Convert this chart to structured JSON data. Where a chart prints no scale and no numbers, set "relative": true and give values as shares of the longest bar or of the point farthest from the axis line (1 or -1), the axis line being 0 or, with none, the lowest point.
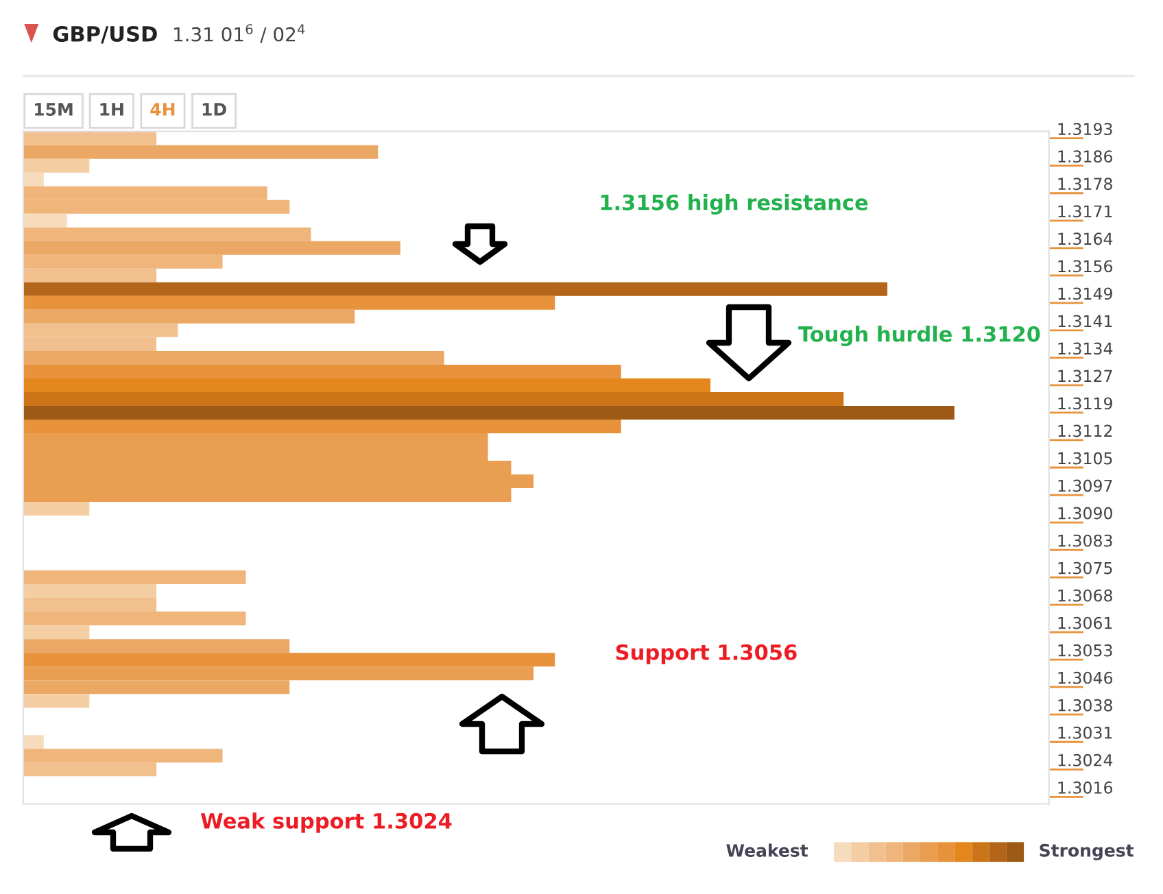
{
  "chart_data": {
    "type": "bar",
    "orientation": "horizontal",
    "relative": true,
    "title": "GBP/USD",
    "subtitle": "1.31 01$^{6}$ / 02$^{4}$",
    "categories": [
      "1.3193",
      null,
      "1.3186",
      null,
      "1.3178",
      null,
      "1.3171",
      null,
      "1.3164",
      null,
      "1.3156",
      null,
      "1.3149",
      null,
      "1.3141",
      null,
      "1.3134",
      null,
      "1.3127",
      null,
      "1.3119",
      null,
      "1.3112",
      null,
      "1.3105",
      null,
      "1.3097",
      null,
      "1.3090",
      null,
      "1.3083",
      null,
      "1.3075",
      null,
      "1.3068",
      null,
      "1.3061",
      null,
      "1.3053",
      null,
      "1.3046",
      null,
      "1.3038",
      null,
      "1.3031",
      null,
      "1.3024",
      null,
      "1.3016"
    ],
    "values": [
      0.143,
      0.381,
      0.071,
      0.022,
      0.262,
      0.286,
      0.047,
      0.309,
      0.405,
      0.214,
      0.143,
      0.928,
      0.571,
      0.356,
      0.166,
      0.143,
      0.452,
      0.642,
      0.738,
      0.881,
      1,
      0.642,
      0.499,
      0.499,
      0.524,
      0.548,
      0.524,
      0.071,
      0,
      0,
      0,
      0,
      0.239,
      0.143,
      0.143,
      0.239,
      0.071,
      0.286,
      0.571,
      0.548,
      0.286,
      0.071,
      0,
      0,
      0.022,
      0.214,
      0.143,
      0,
      0
    ],
    "colors": [
      "#f2c08f",
      "#eba865",
      "#f4cda3",
      "#f7dbbd",
      "#efb57a",
      "#efb57a",
      "#f7dbbd",
      "#efb57a",
      "#eba865",
      "#efb57a",
      "#f2c08f",
      "#b3661a",
      "#e8923c",
      "#eba865",
      "#f2c08f",
      "#f2c08f",
      "#eba865",
      "#e8923c",
      "#e3861c",
      "#cc7418",
      "#9c5a16",
      "#e8923c",
      "#e99e51",
      "#e99e51",
      "#e99e51",
      "#e99e51",
      "#e99e51",
      "#f4cda3",
      "#f7dbbd",
      "#f7dbbd",
      "#f7dbbd",
      "#f7dbbd",
      "#efb57a",
      "#f4cda3",
      "#f2c08f",
      "#efb57a",
      "#f4cda3",
      "#eba865",
      "#e8923c",
      "#e99e51",
      "#eba865",
      "#f4cda3",
      "#f7dbbd",
      "#f7dbbd",
      "#f7dbbd",
      "#efb57a",
      "#f2c08f",
      "#f7dbbd",
      "#f7dbbd"
    ],
    "annotations": [
      "15M",
      "1H",
      "4H",
      "1D",
      "1.3156 high resistance",
      "Tough hurdle 1.3120",
      "Support 1.3056",
      "Weak support 1.3024",
      "Weakest",
      "Strongest"
    ],
    "legend": false
  }
}
